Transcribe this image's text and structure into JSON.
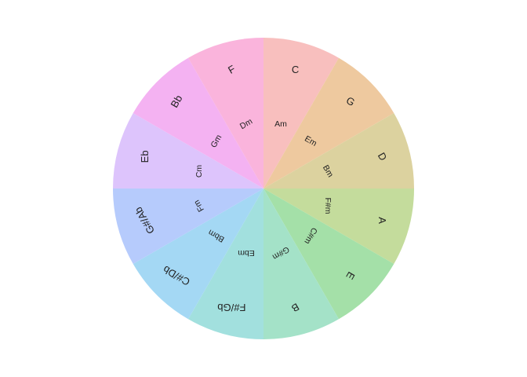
{
  "diagram": {
    "type": "circle-of-fifths-wheel",
    "segments": [
      {
        "major": "C",
        "minor": "Am",
        "color": "#f8bfbe"
      },
      {
        "major": "G",
        "minor": "Em",
        "color": "#eec99f"
      },
      {
        "major": "D",
        "minor": "Bm",
        "color": "#dcd29f"
      },
      {
        "major": "A",
        "minor": "F#m",
        "color": "#c4dc9c"
      },
      {
        "major": "E",
        "minor": "C#m",
        "color": "#a4e0a8"
      },
      {
        "major": "B",
        "minor": "G#m",
        "color": "#a4e2c8"
      },
      {
        "major": "F#/Gb",
        "minor": "Ebm",
        "color": "#a2e0de"
      },
      {
        "major": "C#/Db",
        "minor": "Bbm",
        "color": "#a4d8f4"
      },
      {
        "major": "G#/Ab",
        "minor": "Fm",
        "color": "#b6cbfc"
      },
      {
        "major": "Eb",
        "minor": "Cm",
        "color": "#ddc4fc"
      },
      {
        "major": "Bb",
        "minor": "Gm",
        "color": "#f4b2f2"
      },
      {
        "major": "F",
        "minor": "Dm",
        "color": "#fab4dc"
      }
    ]
  }
}
